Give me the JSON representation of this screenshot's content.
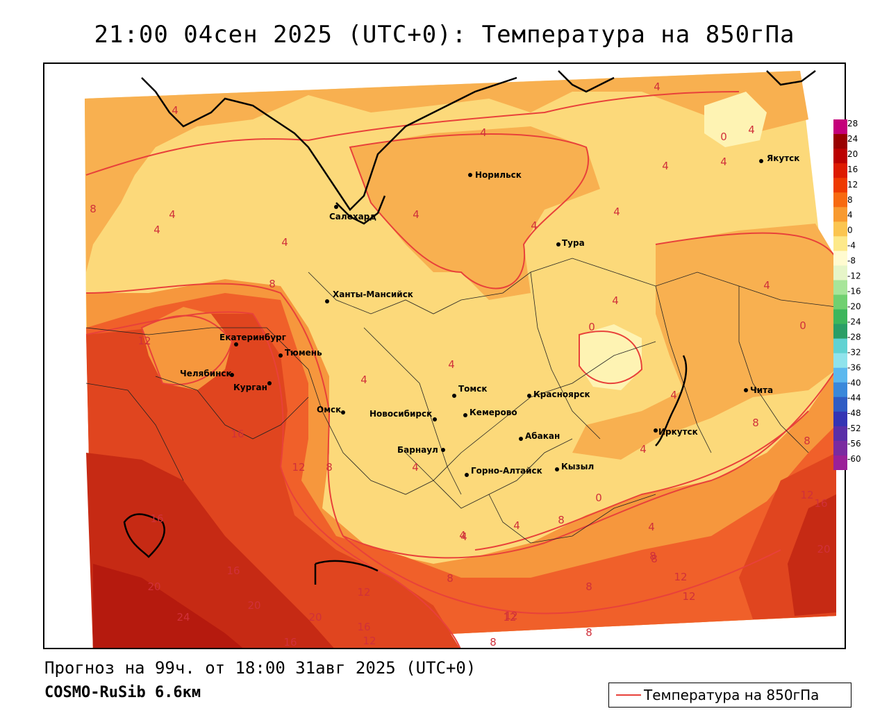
{
  "title": "21:00 04сен 2025 (UTC+0): Температура на 850гПа",
  "forecast_text": "Прогноз на 99ч. от 18:00 31авг 2025 (UTC+0)",
  "model_text": "COSMO-RuSib 6.6км",
  "legend": {
    "label": "Температура на 850гПа",
    "color": "#e8413a"
  },
  "colors": {
    "band_24": "#b51a0e",
    "band_20": "#c62a14",
    "band_16": "#e0451f",
    "band_12": "#f0602a",
    "band_8": "#f6973d",
    "band_4": "#f8b050",
    "band_0": "#fcd97a",
    "band_neg": "#fef3b3",
    "contour": "#e8413a",
    "coast": "#000000"
  },
  "colorbar": {
    "ticks": [
      "28",
      "24",
      "20",
      "16",
      "12",
      "8",
      "4",
      "0",
      "-4",
      "-8",
      "-12",
      "-16",
      "-20",
      "-24",
      "-28",
      "-32",
      "-36",
      "-40",
      "-44",
      "-48",
      "-52",
      "-56",
      "-60"
    ],
    "colors": [
      "#c4007a",
      "#990000",
      "#bb0000",
      "#dd1a00",
      "#ee3a00",
      "#f76a10",
      "#f89a30",
      "#fbc550",
      "#fde98a",
      "#fffbd0",
      "#e6f5c8",
      "#a7e59a",
      "#70d070",
      "#3cb65c",
      "#2a9e66",
      "#60d2d2",
      "#8fe3ec",
      "#5cb8ee",
      "#3a88da",
      "#2f5cc4",
      "#3434b4",
      "#5a2ea8",
      "#7a2aa0",
      "#9a2098"
    ]
  },
  "cities": [
    {
      "name": "Норильск"
    },
    {
      "name": "Якутск"
    },
    {
      "name": "Салехард"
    },
    {
      "name": "Тура"
    },
    {
      "name": "Ханты-Мансийск"
    },
    {
      "name": "Екатеринбург"
    },
    {
      "name": "Тюмень"
    },
    {
      "name": "Челябинск"
    },
    {
      "name": "Курган"
    },
    {
      "name": "Томск"
    },
    {
      "name": "Красноярск"
    },
    {
      "name": "Чита"
    },
    {
      "name": "Омск"
    },
    {
      "name": "Новосибирск"
    },
    {
      "name": "Кемерово"
    },
    {
      "name": "Абакан"
    },
    {
      "name": "Иркутск"
    },
    {
      "name": "Барнаул"
    },
    {
      "name": "Горно-Алтайск"
    },
    {
      "name": "Кызыл"
    }
  ],
  "isolabels": [
    "4",
    "4",
    "4",
    "0",
    "4",
    "4",
    "4",
    "8",
    "4",
    "4",
    "4",
    "4",
    "4",
    "8",
    "4",
    "4",
    "0",
    "4",
    "12",
    "4",
    "4",
    "16",
    "12",
    "8",
    "4",
    "4",
    "0",
    "8",
    "8",
    "12",
    "16",
    "16",
    "20",
    "16",
    "20",
    "24",
    "20",
    "12",
    "16",
    "12",
    "12",
    "8",
    "4",
    "8",
    "8",
    "8",
    "12",
    "12",
    "8",
    "20",
    "4",
    "12",
    "16",
    "8",
    "8",
    "0",
    "4",
    "4",
    "4"
  ]
}
